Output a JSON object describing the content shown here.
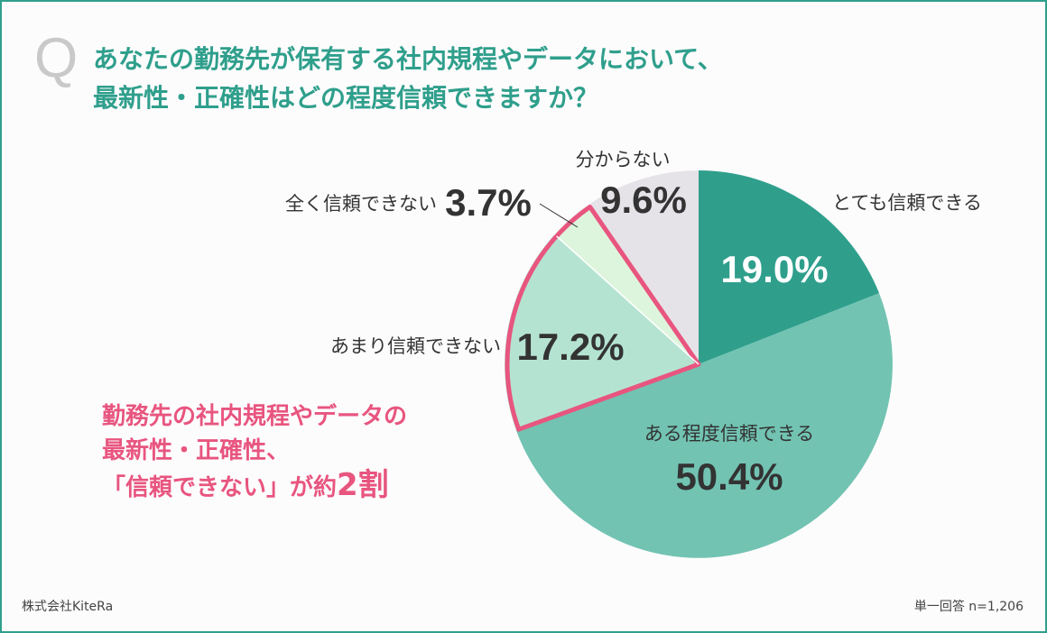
{
  "question": {
    "mark": "Q",
    "line1": "あなたの勤務先が保有する社内規程やデータにおいて、",
    "line2": "最新性・正確性はどの程度信頼できますか？"
  },
  "highlight": {
    "line1": "勤務先の社内規程やデータの",
    "line2": "最新性・正確性、",
    "line3_prefix": "「信頼できない」が約",
    "line3_big": "2割"
  },
  "footer": {
    "company": "株式会社KiteRa",
    "sample": "単一回答 n=1,206"
  },
  "colors": {
    "accent": "#2f9f8c",
    "highlight": "#e8557f"
  },
  "chart_data": {
    "type": "pie",
    "unit": "%",
    "slices": [
      {
        "label": "とても信頼できる",
        "value": 19.0,
        "value_label": "19.0%",
        "color": "#2f9f8c"
      },
      {
        "label": "ある程度信頼できる",
        "value": 50.4,
        "value_label": "50.4%",
        "color": "#72c3b2"
      },
      {
        "label": "あまり信頼できない",
        "value": 17.2,
        "value_label": "17.2%",
        "color": "#b5e3d2"
      },
      {
        "label": "全く信頼できない",
        "value": 3.7,
        "value_label": "3.7%",
        "color": "#ddf5dc"
      },
      {
        "label": "分からない",
        "value": 9.6,
        "value_label": "9.6%",
        "color": "#e6e3e8"
      }
    ],
    "highlighted_slices": [
      "あまり信頼できない",
      "全く信頼できない"
    ]
  }
}
